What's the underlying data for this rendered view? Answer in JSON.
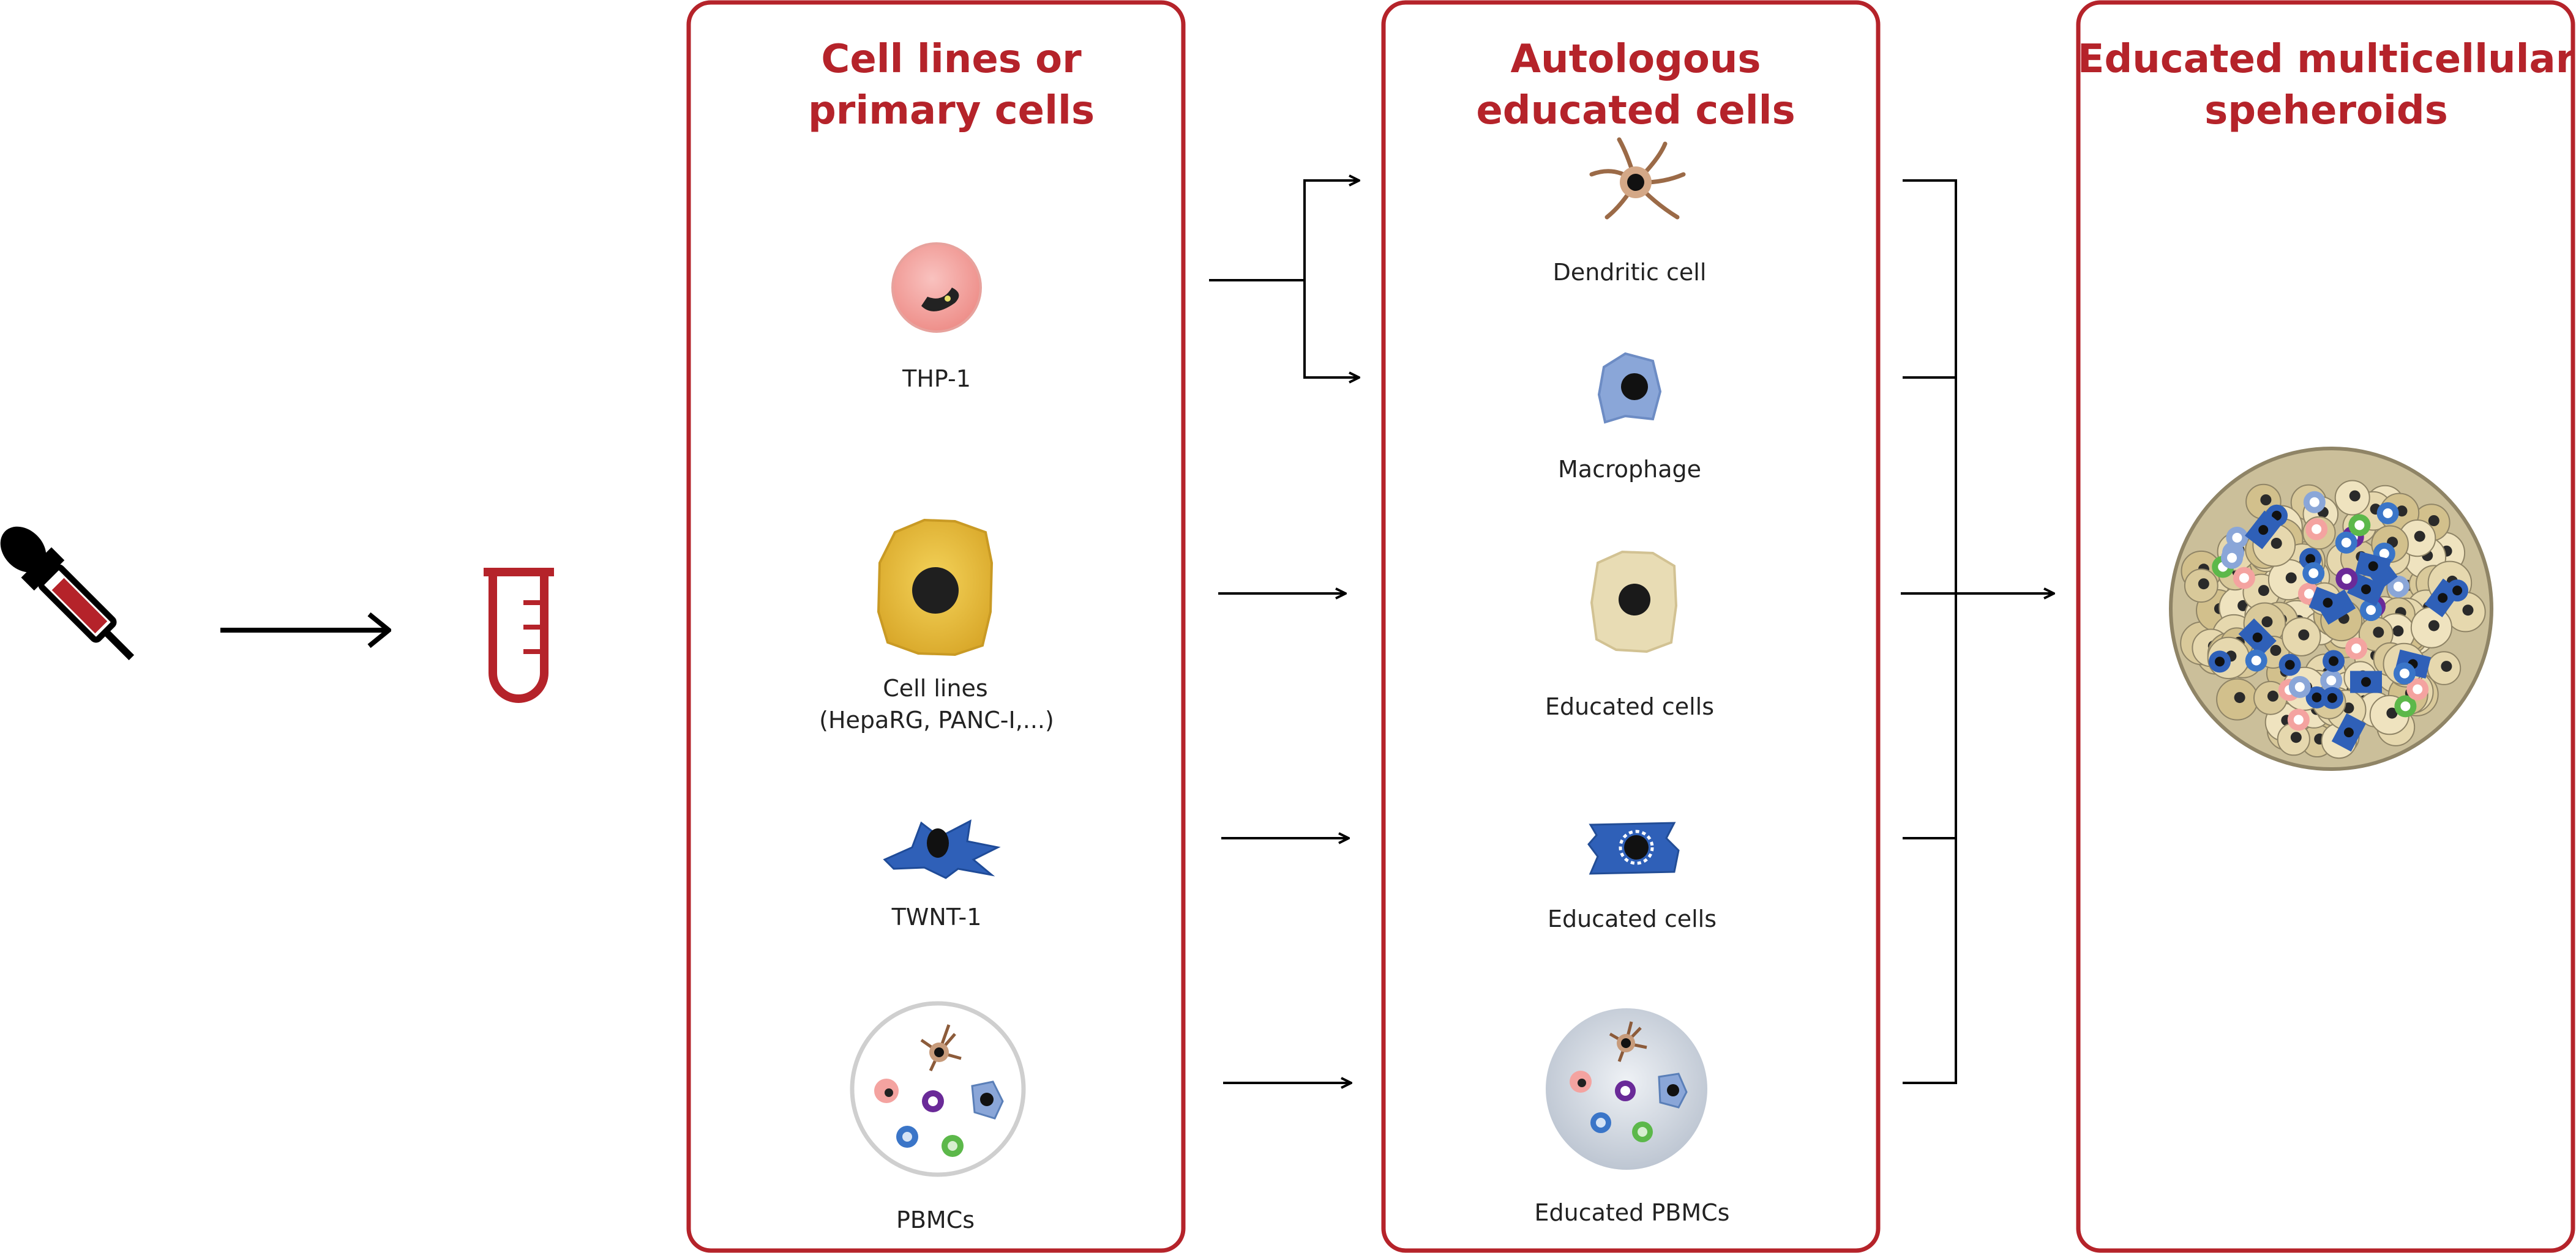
{
  "colors": {
    "accent": "#b5232a",
    "thp1": "#f4a3a0",
    "hepa": "#e6bd3a",
    "twnt": "#2f60b8",
    "educated": "#e8dcb4",
    "pbmc_bg": "#dfe3ea"
  },
  "panels": [
    {
      "title_line1": "Cell lines or",
      "title_line2": "primary cells",
      "cells": [
        {
          "label": "THP-1",
          "icon": "thp1-cell-icon"
        },
        {
          "label": "Cell lines",
          "label2": "(HepaRG, PANC-I,...)",
          "icon": "hepatocyte-cell-icon"
        },
        {
          "label": "TWNT-1",
          "icon": "fibroblast-cell-icon"
        },
        {
          "label": "PBMCs",
          "icon": "pbmc-dish-icon"
        }
      ]
    },
    {
      "title_line1": "Autologous",
      "title_line2": "educated cells",
      "cells": [
        {
          "label": "Dendritic cell",
          "icon": "dendritic-cell-icon"
        },
        {
          "label": "Macrophage",
          "icon": "macrophage-cell-icon"
        },
        {
          "label": "Educated cells",
          "icon": "educated-cell-icon"
        },
        {
          "label": "Educated cells",
          "icon": "educated-fibroblast-icon"
        },
        {
          "label": "Educated PBMCs",
          "icon": "educated-pbmc-dish-icon"
        }
      ]
    },
    {
      "title_line1": "Educated multicellular",
      "title_line2": "speheroids",
      "icon": "spheroid-icon"
    }
  ],
  "source_icons": [
    "dropper-icon",
    "test-tube-icon"
  ]
}
